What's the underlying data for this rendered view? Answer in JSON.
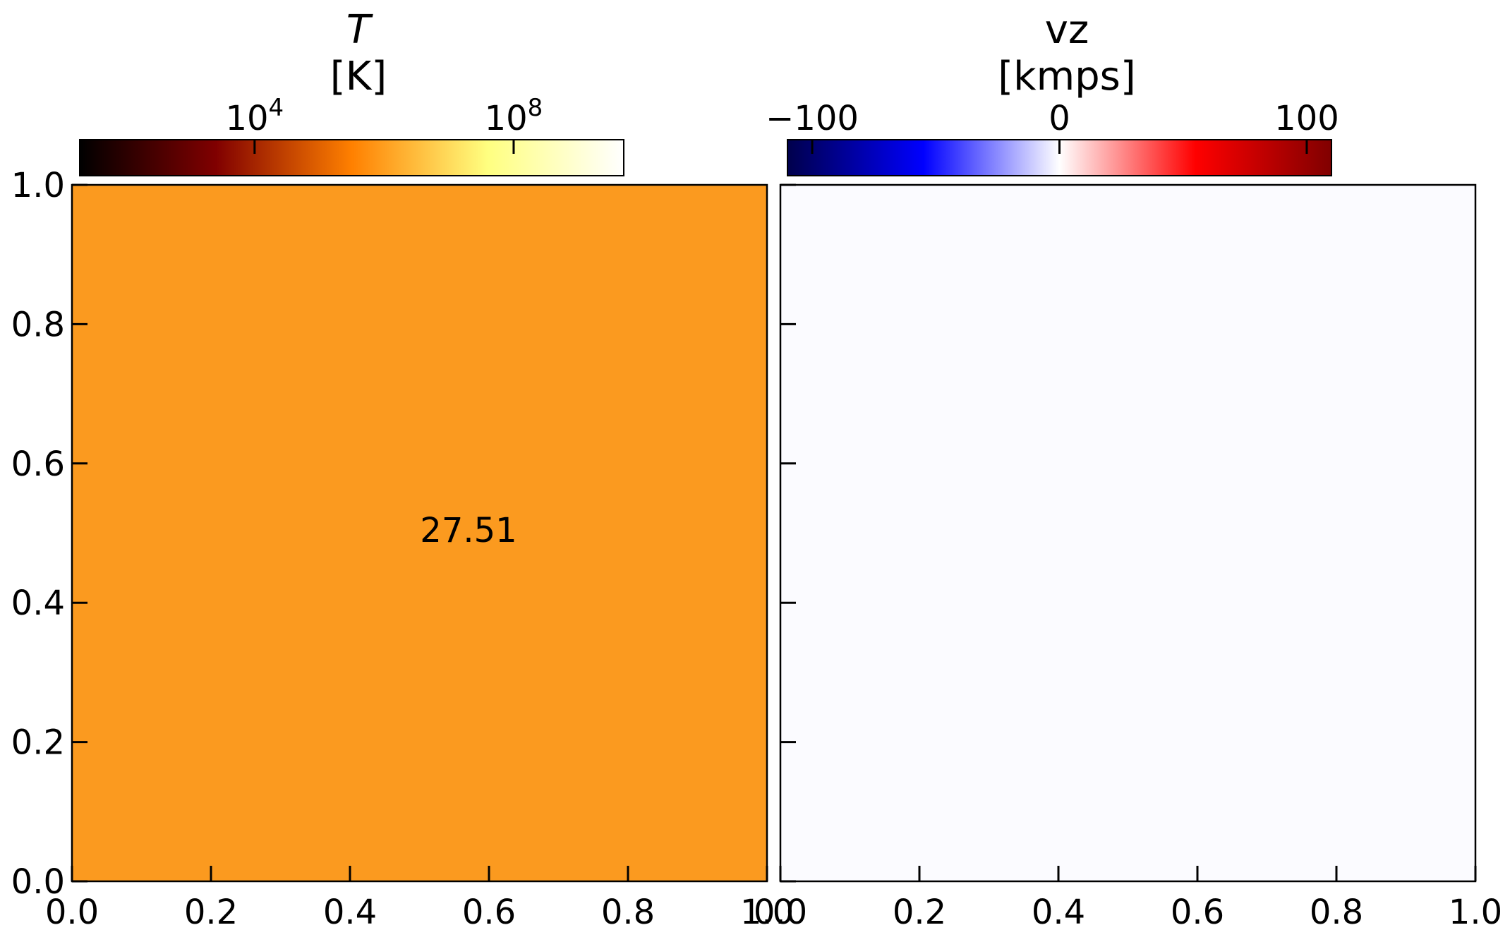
{
  "chart_data": [
    {
      "type": "heatmap",
      "title": "T",
      "units": "[K]",
      "x": [
        0.0,
        1.0
      ],
      "y": [
        0.0,
        1.0
      ],
      "xlim": [
        0.0,
        1.0
      ],
      "ylim": [
        0.0,
        1.0
      ],
      "xticks": [
        "0.0",
        "0.2",
        "0.4",
        "0.6",
        "0.8",
        "1.0"
      ],
      "yticks": [
        "0.0",
        "0.2",
        "0.4",
        "0.6",
        "0.8",
        "1.0"
      ],
      "values": [
        [
          27.51
        ]
      ],
      "annotation": "27.51",
      "cell_color": "#fb9a1f",
      "colorbar": {
        "scale": "log",
        "colormap": "afmhot",
        "min_exp": 1.3,
        "max_exp": 9.7,
        "tick_exponents": [
          4,
          8
        ],
        "tick_base": "10",
        "orientation": "horizontal",
        "position": "top"
      }
    },
    {
      "type": "heatmap",
      "title": "vz",
      "units": "[kmps]",
      "x": [
        0.0,
        1.0
      ],
      "y": [
        0.0,
        1.0
      ],
      "xlim": [
        0.0,
        1.0
      ],
      "ylim": [
        0.0,
        1.0
      ],
      "xticks": [
        "0.0",
        "0.2",
        "0.4",
        "0.6",
        "0.8",
        "1.0"
      ],
      "values": [
        [
          0.0
        ]
      ],
      "cell_color": "#fbfbff",
      "colorbar": {
        "scale": "linear",
        "colormap": "seismic",
        "min": -110,
        "max": 110,
        "ticks": [
          -100,
          0,
          100
        ],
        "tick_labels": [
          "−100",
          "0",
          "100"
        ],
        "orientation": "horizontal",
        "position": "top"
      }
    }
  ]
}
